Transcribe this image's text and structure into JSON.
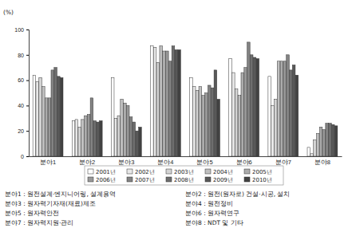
{
  "chart_data": {
    "type": "bar",
    "ylabel": "(%)",
    "categories": [
      "분야1",
      "분야2",
      "분야3",
      "분야4",
      "분야5",
      "분야6",
      "분야7",
      "분야8"
    ],
    "series": [
      {
        "name": "2001년",
        "color": "#ffffff",
        "values": [
          64,
          28,
          62,
          87,
          62,
          77,
          63,
          7
        ]
      },
      {
        "name": "2002년",
        "color": "#e8e8e8",
        "values": [
          59,
          29,
          30,
          86,
          55,
          66,
          40,
          2
        ]
      },
      {
        "name": "2003년",
        "color": "#d4d4d4",
        "values": [
          62,
          23,
          32,
          74,
          52,
          53,
          45,
          13
        ]
      },
      {
        "name": "2004년",
        "color": "#c0c0c0",
        "values": [
          55,
          29,
          45,
          87,
          55,
          48,
          75,
          18
        ]
      },
      {
        "name": "2005년",
        "color": "#acacac",
        "values": [
          46,
          32,
          42,
          83,
          48,
          66,
          75,
          23
        ]
      },
      {
        "name": "2006년",
        "color": "#989898",
        "values": [
          46,
          33,
          40,
          83,
          50,
          70,
          75,
          21
        ]
      },
      {
        "name": "2007년",
        "color": "#838383",
        "values": [
          68,
          46,
          31,
          75,
          56,
          90,
          80,
          26
        ]
      },
      {
        "name": "2008년",
        "color": "#6e6e6e",
        "values": [
          70,
          28,
          27,
          87,
          54,
          80,
          68,
          26
        ]
      },
      {
        "name": "2009년",
        "color": "#585858",
        "values": [
          63,
          27,
          20,
          84,
          68,
          78,
          72,
          25
        ]
      },
      {
        "name": "2010년",
        "color": "#424242",
        "values": [
          62,
          28,
          23,
          84,
          45,
          77,
          64,
          24
        ]
      }
    ],
    "ylim": [
      0,
      100
    ],
    "yticks": [
      0,
      20,
      40,
      60,
      80,
      100
    ],
    "grid": false,
    "legend": "bottom",
    "annotations": [
      "분야1 : 원전설계·엔지니어링, 설계용역",
      "분야2 : 원전(원자로) 건설·시공, 설치",
      "분야3 : 원자력기자재(재료)제조",
      "분야4 : 원전정비",
      "분야5 : 원자력안전",
      "분야6 : 원자력연구",
      "분야7 : 원자력지원·관리",
      "분야8 : NDT 및 기타"
    ]
  }
}
